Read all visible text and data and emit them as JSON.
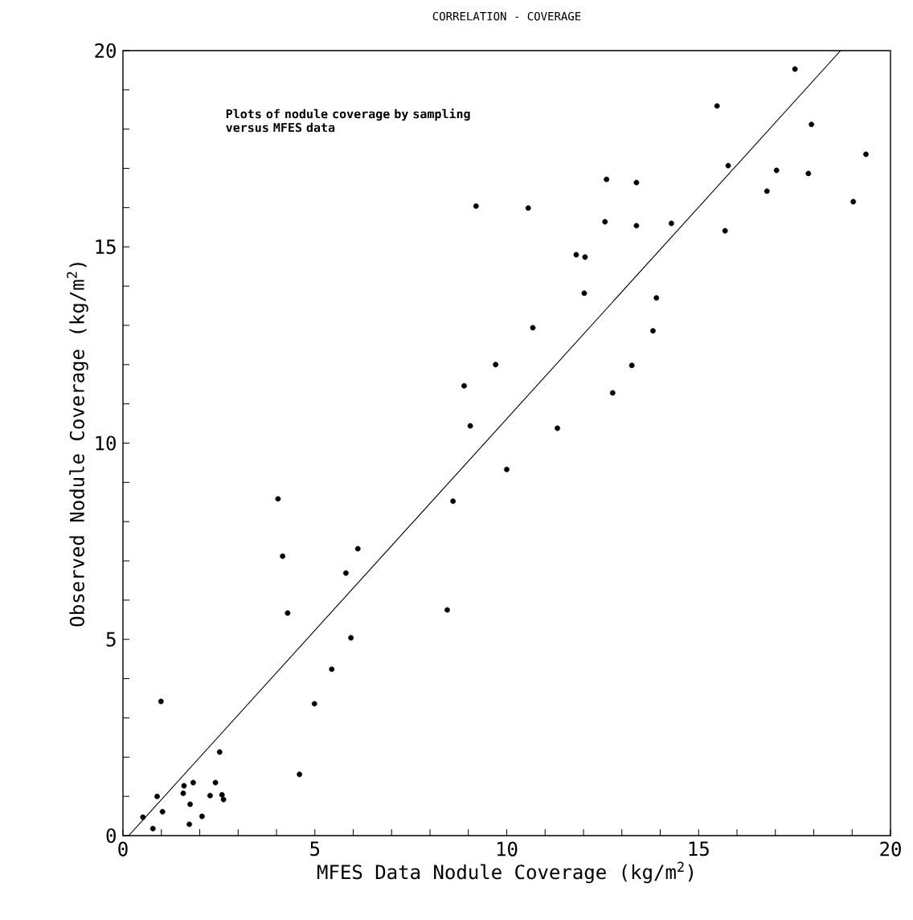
{
  "chart_data": {
    "type": "scatter",
    "title": "CORRELATION - COVERAGE",
    "xlabel": "MFES Data Nodule Coverage (kg/m$^{2}$)",
    "ylabel": "Observed Nodule Coverage (kg/m$^{2}$)",
    "annotations": [
      "Plots of nodule coverage by sampling versus MFES data"
    ],
    "xlim": [
      0,
      20
    ],
    "ylim": [
      0,
      20
    ],
    "xticks": [
      0,
      {
        "value": 1,
        "label": null
      },
      {
        "value": 2,
        "label": null
      },
      {
        "value": 3,
        "label": null
      },
      {
        "value": 4,
        "label": null
      },
      5,
      {
        "value": 6,
        "label": null
      },
      {
        "value": 7,
        "label": null
      },
      {
        "value": 8,
        "label": null
      },
      {
        "value": 9,
        "label": null
      },
      10,
      {
        "value": 11,
        "label": null
      },
      {
        "value": 12,
        "label": null
      },
      {
        "value": 13,
        "label": null
      },
      {
        "value": 14,
        "label": null
      },
      15,
      {
        "value": 16,
        "label": null
      },
      {
        "value": 17,
        "label": null
      },
      {
        "value": 18,
        "label": null
      },
      {
        "value": 19,
        "label": null
      },
      20
    ],
    "yticks": [
      0,
      {
        "value": 1,
        "label": null
      },
      {
        "value": 2,
        "label": null
      },
      {
        "value": 3,
        "label": null
      },
      {
        "value": 4,
        "label": null
      },
      5,
      {
        "value": 6,
        "label": null
      },
      {
        "value": 7,
        "label": null
      },
      {
        "value": 8,
        "label": null
      },
      {
        "value": 9,
        "label": null
      },
      10,
      {
        "value": 11,
        "label": null
      },
      {
        "value": 12,
        "label": null
      },
      {
        "value": 13,
        "label": null
      },
      {
        "value": 14,
        "label": null
      },
      15,
      {
        "value": 16,
        "label": null
      },
      {
        "value": 17,
        "label": null
      },
      {
        "value": 18,
        "label": null
      },
      {
        "value": 19,
        "label": null
      },
      20
    ],
    "series": [
      {
        "color": "#000000",
        "marker": "circle",
        "x": [
          0.52,
          0.78,
          0.89,
          1.03,
          1.59,
          1.57,
          1.83,
          1.75,
          1.73,
          2.06,
          2.27,
          2.41,
          2.52,
          2.58,
          2.62,
          4.6,
          0.99,
          4.04,
          6.12,
          5.81,
          4.29,
          5.94,
          5.44,
          4.99,
          8.45,
          8.6,
          10.0,
          4.16,
          9.71,
          8.89,
          9.05,
          11.32,
          13.26,
          12.76,
          17.51,
          15.48,
          17.94,
          19.36,
          15.77,
          17.03,
          17.86,
          16.78,
          19.03,
          15.69,
          12.6,
          13.38,
          10.56,
          12.56,
          13.38,
          14.29,
          11.81,
          12.04,
          12.02,
          13.9,
          10.68,
          13.81,
          9.2
        ],
        "values": [
          0.47,
          0.18,
          1.0,
          0.61,
          1.27,
          1.08,
          1.35,
          0.8,
          0.29,
          0.49,
          1.02,
          1.35,
          2.13,
          1.04,
          0.92,
          1.56,
          3.42,
          8.58,
          7.31,
          6.69,
          5.67,
          5.04,
          4.24,
          3.36,
          5.75,
          8.52,
          9.33,
          7.12,
          12.0,
          11.46,
          10.44,
          10.38,
          11.98,
          11.28,
          19.53,
          18.59,
          18.12,
          17.36,
          17.07,
          16.95,
          16.87,
          16.42,
          16.15,
          15.41,
          16.72,
          16.64,
          15.99,
          15.64,
          15.54,
          15.6,
          14.8,
          14.74,
          13.82,
          13.7,
          12.94,
          12.86,
          16.04
        ]
      },
      {
        "type": "line",
        "color": "#000000",
        "marker": "none",
        "line_style": "solid",
        "x": [
          0.15,
          18.7
        ],
        "values": [
          0,
          20
        ]
      }
    ]
  }
}
